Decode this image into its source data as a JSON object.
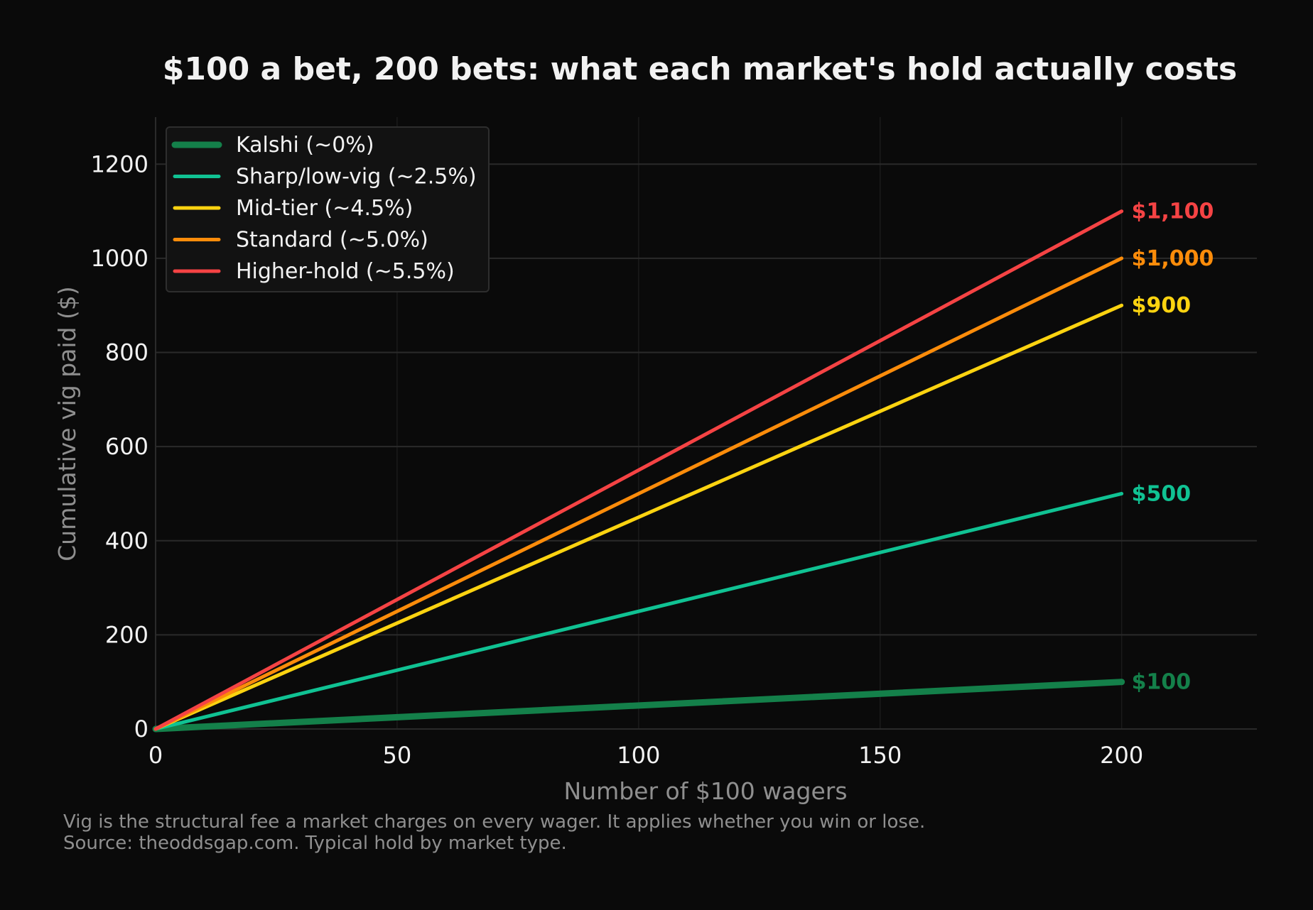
{
  "chart_data": {
    "type": "line",
    "title": "$100 a bet, 200 bets: what each market's hold actually costs",
    "xlabel": "Number of $100 wagers",
    "ylabel": "Cumulative vig paid ($)",
    "xlim": [
      0,
      228
    ],
    "ylim": [
      0,
      1300
    ],
    "xticks": [
      0,
      50,
      100,
      150,
      200
    ],
    "yticks": [
      0,
      200,
      400,
      600,
      800,
      1000,
      1200
    ],
    "grid": true,
    "legend_position": "top-left",
    "series": [
      {
        "name": "Kalshi (~0%)",
        "color": "#14804a",
        "x": [
          0,
          200
        ],
        "y": [
          0,
          100
        ],
        "end_label": "$100",
        "width": "thick"
      },
      {
        "name": "Sharp/low-vig (~2.5%)",
        "color": "#10c293",
        "x": [
          0,
          200
        ],
        "y": [
          0,
          500
        ],
        "end_label": "$500",
        "width": "normal"
      },
      {
        "name": "Mid-tier (~4.5%)",
        "color": "#fcd310",
        "x": [
          0,
          200
        ],
        "y": [
          0,
          900
        ],
        "end_label": "$900",
        "width": "normal"
      },
      {
        "name": "Standard (~5.0%)",
        "color": "#fc8c0a",
        "x": [
          0,
          200
        ],
        "y": [
          0,
          1000
        ],
        "end_label": "$1,000",
        "width": "normal"
      },
      {
        "name": "Higher-hold (~5.5%)",
        "color": "#f54344",
        "x": [
          0,
          200
        ],
        "y": [
          0,
          1100
        ],
        "end_label": "$1,100",
        "width": "normal"
      }
    ],
    "footnotes": [
      "Vig is the structural fee a market charges on every wager. It applies whether you win or lose.",
      "Source: theoddsgap.com. Typical hold by market type."
    ]
  }
}
